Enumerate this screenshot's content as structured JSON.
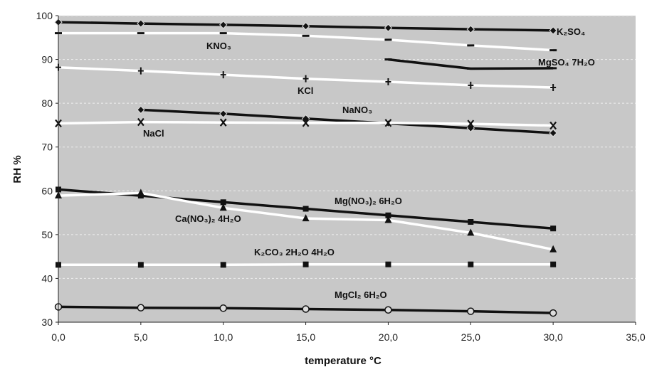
{
  "chart_data": {
    "type": "line",
    "title": "",
    "xlabel": "temperature  °C",
    "ylabel": "RH %",
    "xlim": [
      0,
      35
    ],
    "ylim": [
      30,
      100
    ],
    "xticks": [
      "0,0",
      "5,0",
      "10,0",
      "15,0",
      "20,0",
      "25,0",
      "30,0",
      "35,0"
    ],
    "yticks": [
      "30",
      "40",
      "50",
      "60",
      "70",
      "80",
      "90",
      "100"
    ],
    "grid": "horizontal dashed",
    "background": "#c8c8c8",
    "series": [
      {
        "name": "K₂SO₄",
        "color": "#111111",
        "marker": "diamond",
        "x": [
          0,
          5,
          10,
          15,
          20,
          25,
          30
        ],
        "y": [
          98.5,
          98.2,
          97.9,
          97.6,
          97.2,
          96.9,
          96.6
        ]
      },
      {
        "name": "KNO₃",
        "color": "#ffffff",
        "marker": "dash",
        "x": [
          0,
          5,
          10,
          15,
          20,
          25,
          30
        ],
        "y": [
          96,
          96,
          96,
          95.4,
          94.5,
          93.2,
          92.1
        ]
      },
      {
        "name": "MgSO₄ 7H₂O",
        "color": "#111111",
        "marker": "dash",
        "x": [
          20,
          25,
          30
        ],
        "y": [
          90,
          87.9,
          88
        ]
      },
      {
        "name": "KCl",
        "color": "#ffffff",
        "marker": "plus",
        "x": [
          0,
          5,
          10,
          15,
          20,
          25,
          30
        ],
        "y": [
          88.2,
          87.4,
          86.5,
          85.6,
          84.9,
          84.1,
          83.6
        ]
      },
      {
        "name": "NaNO₃",
        "color": "#111111",
        "marker": "diamond",
        "x": [
          5,
          10,
          15,
          20,
          25,
          30
        ],
        "y": [
          78.5,
          77.6,
          76.5,
          75.4,
          74.3,
          73.2
        ]
      },
      {
        "name": "NaCl",
        "color": "#ffffff",
        "marker": "x",
        "x": [
          0,
          5,
          10,
          15,
          20,
          25,
          30
        ],
        "y": [
          75.4,
          75.7,
          75.6,
          75.5,
          75.5,
          75.3,
          74.9
        ]
      },
      {
        "name": "Mg(NO₃)₂ 6H₂O",
        "color": "#111111",
        "marker": "square",
        "x": [
          0,
          5,
          10,
          15,
          20,
          25,
          30
        ],
        "y": [
          60.3,
          58.9,
          57.4,
          55.9,
          54.4,
          52.9,
          51.4
        ]
      },
      {
        "name": "Ca(NO₃)₂ 4H₂O",
        "color": "#ffffff",
        "marker": "triangle",
        "x": [
          0,
          5,
          10,
          15,
          20,
          25,
          30
        ],
        "y": [
          58.9,
          59.5,
          56.1,
          53.7,
          53.3,
          50.4,
          46.6
        ]
      },
      {
        "name": "K₂CO₃ 2H₂O 4H₂O",
        "color": "#ffffff",
        "marker": "square",
        "x": [
          0,
          5,
          10,
          15,
          20,
          25,
          30
        ],
        "y": [
          43.1,
          43.1,
          43.1,
          43.2,
          43.2,
          43.2,
          43.2
        ]
      },
      {
        "name": "MgCl₂ 6H₂O",
        "color": "#111111",
        "marker": "circle",
        "x": [
          0,
          5,
          10,
          15,
          20,
          25,
          30
        ],
        "y": [
          33.5,
          33.3,
          33.2,
          33.0,
          32.8,
          32.5,
          32.1
        ]
      }
    ],
    "annotations": {
      "k2so4": "K₂SO₄",
      "kno3": "KNO₃",
      "mgso4": "MgSO₄ 7H₂O",
      "kcl": "KCl",
      "nano3": "NaNO₃",
      "nacl": "NaCl",
      "mgno3": "Mg(NO₃)₂ 6H₂O",
      "cano3": "Ca(NO₃)₂ 4H₂O",
      "k2co3": "K₂CO₃ 2H₂O 4H₂O",
      "mgcl2": "MgCl₂ 6H₂O"
    }
  }
}
